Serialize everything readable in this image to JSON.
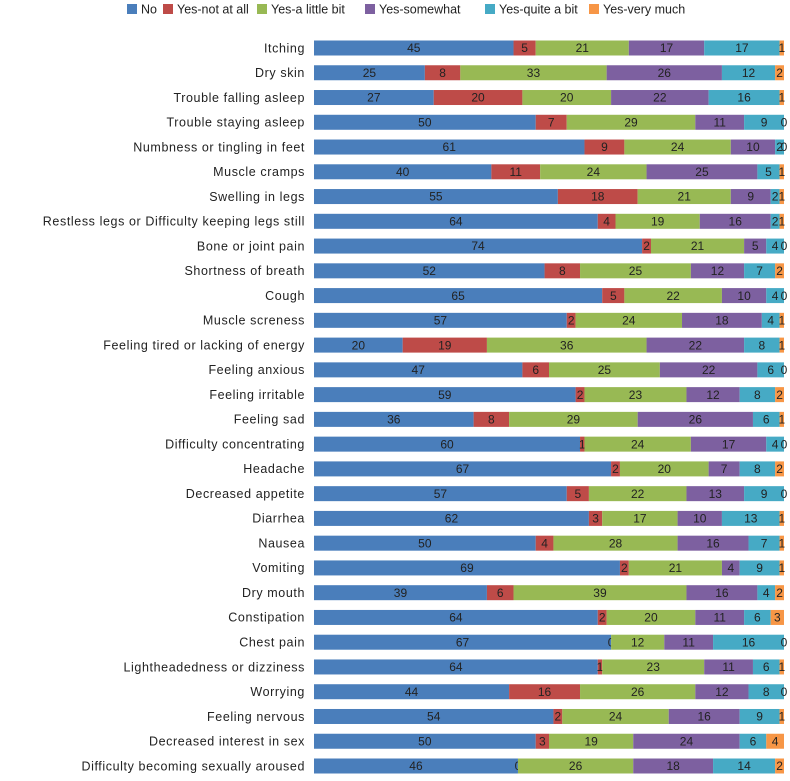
{
  "chart_data": {
    "type": "bar",
    "orientation": "horizontal",
    "stacked": "percent",
    "categories": [
      "Itching",
      "Dry skin",
      "Trouble falling asleep",
      "Trouble staying asleep",
      "Numbness or tingling in feet",
      "Muscle cramps",
      "Swelling in legs",
      "Restless legs or Difficulty keeping legs still",
      "Bone or joint pain",
      "Shortness of breath",
      "Cough",
      "Muscle screness",
      "Feeling tired or lacking of energy",
      "Feeling anxious",
      "Feeling irritable",
      "Feeling sad",
      "Difficulty concentrating",
      "Headache",
      "Decreased appetite",
      "Diarrhea",
      "Nausea",
      "Vomiting",
      "Dry mouth",
      "Constipation",
      "Chest pain",
      "Lightheadedness or dizziness",
      "Worrying",
      "Feeling nervous",
      "Decreased interest in sex",
      "Difficulty becoming sexually aroused"
    ],
    "series": [
      {
        "name": "No",
        "color": "#4a7ebb",
        "values": [
          45,
          25,
          27,
          50,
          61,
          40,
          55,
          64,
          74,
          52,
          65,
          57,
          20,
          47,
          59,
          36,
          60,
          67,
          57,
          62,
          50,
          69,
          39,
          64,
          67,
          64,
          44,
          54,
          50,
          46
        ]
      },
      {
        "name": "Yes-not at all",
        "color": "#be4b48",
        "values": [
          5,
          8,
          20,
          7,
          9,
          11,
          18,
          4,
          2,
          8,
          5,
          2,
          19,
          6,
          2,
          8,
          1,
          2,
          5,
          3,
          4,
          2,
          6,
          2,
          0,
          1,
          16,
          2,
          3,
          0
        ]
      },
      {
        "name": "Yes-a little bit",
        "color": "#98b954",
        "values": [
          21,
          33,
          20,
          29,
          24,
          24,
          21,
          19,
          21,
          25,
          22,
          24,
          36,
          25,
          23,
          29,
          24,
          20,
          22,
          17,
          28,
          21,
          39,
          20,
          12,
          23,
          26,
          24,
          19,
          26
        ]
      },
      {
        "name": "Yes-somewhat",
        "color": "#7d60a0",
        "values": [
          17,
          26,
          22,
          11,
          10,
          25,
          9,
          16,
          5,
          12,
          10,
          18,
          22,
          22,
          12,
          26,
          17,
          7,
          13,
          10,
          16,
          4,
          16,
          11,
          11,
          11,
          12,
          16,
          24,
          18
        ]
      },
      {
        "name": "Yes-quite a bit",
        "color": "#46aac5",
        "values": [
          17,
          12,
          16,
          9,
          2,
          5,
          2,
          2,
          4,
          7,
          4,
          4,
          8,
          6,
          8,
          6,
          4,
          8,
          9,
          13,
          7,
          9,
          4,
          6,
          16,
          6,
          8,
          9,
          6,
          14
        ]
      },
      {
        "name": "Yes-very much",
        "color": "#f79646",
        "values": [
          1,
          2,
          1,
          0,
          0,
          1,
          1,
          1,
          0,
          2,
          0,
          1,
          1,
          0,
          2,
          1,
          0,
          2,
          0,
          1,
          1,
          1,
          2,
          3,
          0,
          1,
          0,
          1,
          4,
          2
        ]
      }
    ],
    "legend": "top"
  }
}
